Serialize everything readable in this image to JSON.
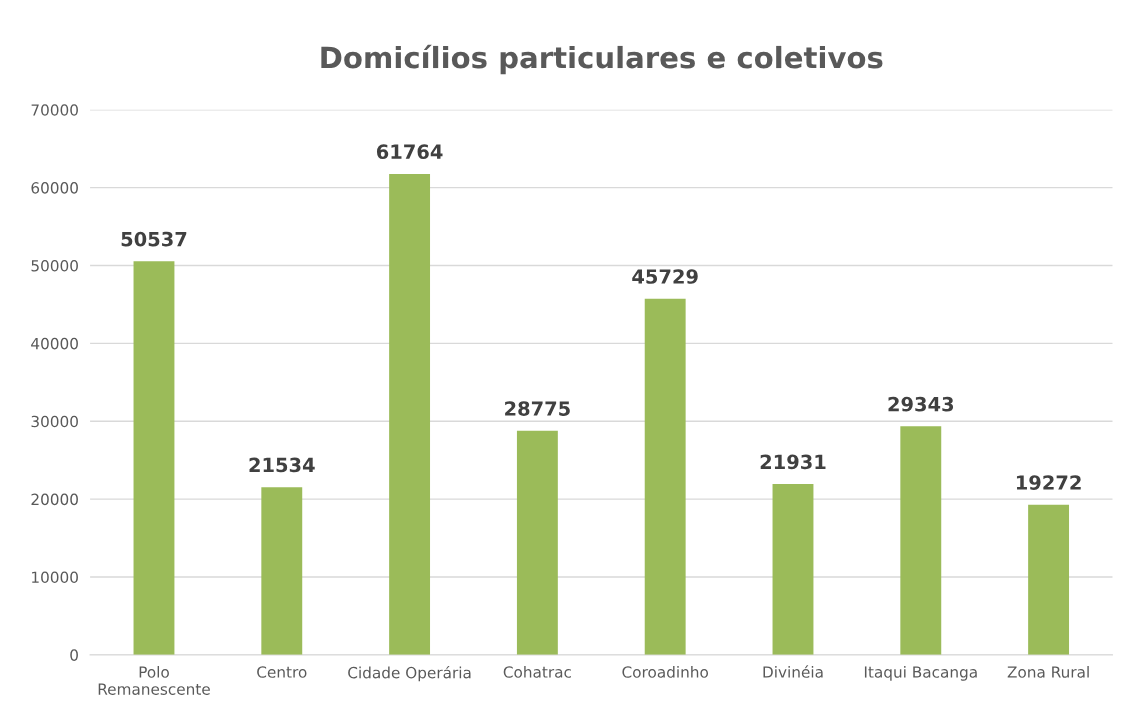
{
  "chart_data": {
    "type": "bar",
    "title": "Domicílios particulares e coletivos",
    "categories": [
      "Polo Remanescente",
      "Centro",
      "Cidade Operária",
      "Cohatrac",
      "Coroadinho",
      "Divinéia",
      "Itaqui Bacanga",
      "Zona Rural"
    ],
    "values": [
      50537,
      21534,
      61764,
      28775,
      45729,
      21931,
      29343,
      19272
    ],
    "color": "#9bbb59",
    "ylim": [
      0,
      70000
    ],
    "yticks": [
      0,
      10000,
      20000,
      30000,
      40000,
      50000,
      60000,
      70000
    ],
    "grid": "y",
    "data_labels": true
  }
}
